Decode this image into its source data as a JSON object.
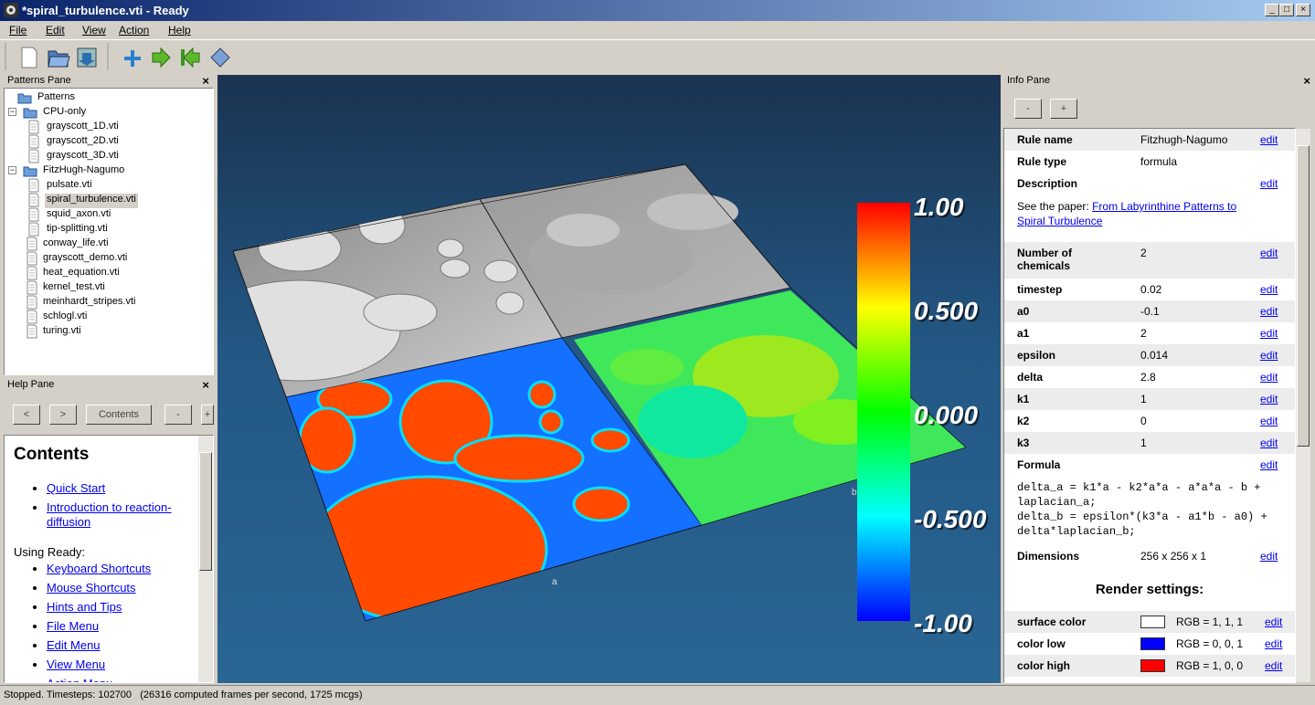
{
  "window": {
    "title": "*spiral_turbulence.vti - Ready"
  },
  "menu": [
    "File",
    "Edit",
    "View",
    "Action",
    "Help"
  ],
  "patterns_pane": {
    "title": "Patterns Pane",
    "tree": {
      "label": "Patterns",
      "children": [
        {
          "label": "CPU-only",
          "children": [
            {
              "label": "grayscott_1D.vti"
            },
            {
              "label": "grayscott_2D.vti"
            },
            {
              "label": "grayscott_3D.vti"
            }
          ]
        },
        {
          "label": "FitzHugh-Nagumo",
          "children": [
            {
              "label": "pulsate.vti"
            },
            {
              "label": "spiral_turbulence.vti",
              "selected": true
            },
            {
              "label": "squid_axon.vti"
            },
            {
              "label": "tip-splitting.vti"
            }
          ]
        },
        {
          "label": "conway_life.vti"
        },
        {
          "label": "grayscott_demo.vti"
        },
        {
          "label": "heat_equation.vti"
        },
        {
          "label": "kernel_test.vti"
        },
        {
          "label": "meinhardt_stripes.vti"
        },
        {
          "label": "schlogl.vti"
        },
        {
          "label": "turing.vti"
        }
      ]
    }
  },
  "help_pane": {
    "title": "Help Pane",
    "buttons": [
      "<",
      ">",
      "Contents",
      "-",
      "+"
    ],
    "heading": "Contents",
    "links_top": [
      "Quick Start",
      "Introduction to reaction-diffusion"
    ],
    "subheading": "Using Ready:",
    "links": [
      "Keyboard Shortcuts",
      "Mouse Shortcuts",
      "Hints and Tips",
      "File Menu",
      "Edit Menu",
      "View Menu",
      "Action Menu"
    ]
  },
  "viewport": {
    "colorbar_labels": [
      "1.00",
      "0.500",
      "0.000",
      "-0.500",
      "-1.00"
    ],
    "axis_labels": [
      "a",
      "b"
    ]
  },
  "info_pane": {
    "title": "Info Pane",
    "buttons": [
      "-",
      "+"
    ],
    "rows": [
      {
        "label": "Rule name",
        "value": "Fitzhugh-Nagumo",
        "action": "edit"
      },
      {
        "label": "Rule type",
        "value": "formula"
      },
      {
        "label": "Description",
        "action": "edit",
        "text": "See the paper: ",
        "link": "From Labyrinthine Patterns to Spiral Turbulence"
      },
      {
        "label": "Number of chemicals",
        "value": "2",
        "action": "edit"
      },
      {
        "label": "timestep",
        "value": "0.02",
        "action": "edit"
      },
      {
        "label": "a0",
        "value": "-0.1",
        "action": "edit"
      },
      {
        "label": "a1",
        "value": "2",
        "action": "edit"
      },
      {
        "label": "epsilon",
        "value": "0.014",
        "action": "edit"
      },
      {
        "label": "delta",
        "value": "2.8",
        "action": "edit"
      },
      {
        "label": "k1",
        "value": "1",
        "action": "edit"
      },
      {
        "label": "k2",
        "value": "0",
        "action": "edit"
      },
      {
        "label": "k3",
        "value": "1",
        "action": "edit"
      },
      {
        "label": "Formula",
        "action": "edit",
        "code": [
          "delta_a = k1*a - k2*a*a - a*a*a - b + laplacian_a;",
          "delta_b = epsilon*(k3*a - a1*b - a0) + delta*laplacian_b;"
        ]
      },
      {
        "label": "Dimensions",
        "value": "256 x 256 x 1",
        "action": "edit"
      }
    ],
    "render_heading": "Render settings:",
    "render_rows": [
      {
        "label": "surface color",
        "swatch": "#ffffff",
        "value": "RGB = 1, 1, 1",
        "action": "edit"
      },
      {
        "label": "color low",
        "swatch": "#0000ff",
        "value": "RGB = 0, 0, 1",
        "action": "edit"
      },
      {
        "label": "color high",
        "swatch": "#ff0000",
        "value": "RGB = 1, 0, 0",
        "action": "edit"
      }
    ]
  },
  "status": "Stopped. Timesteps: 102700   (26316 computed frames per second, 1725 mcgs)"
}
